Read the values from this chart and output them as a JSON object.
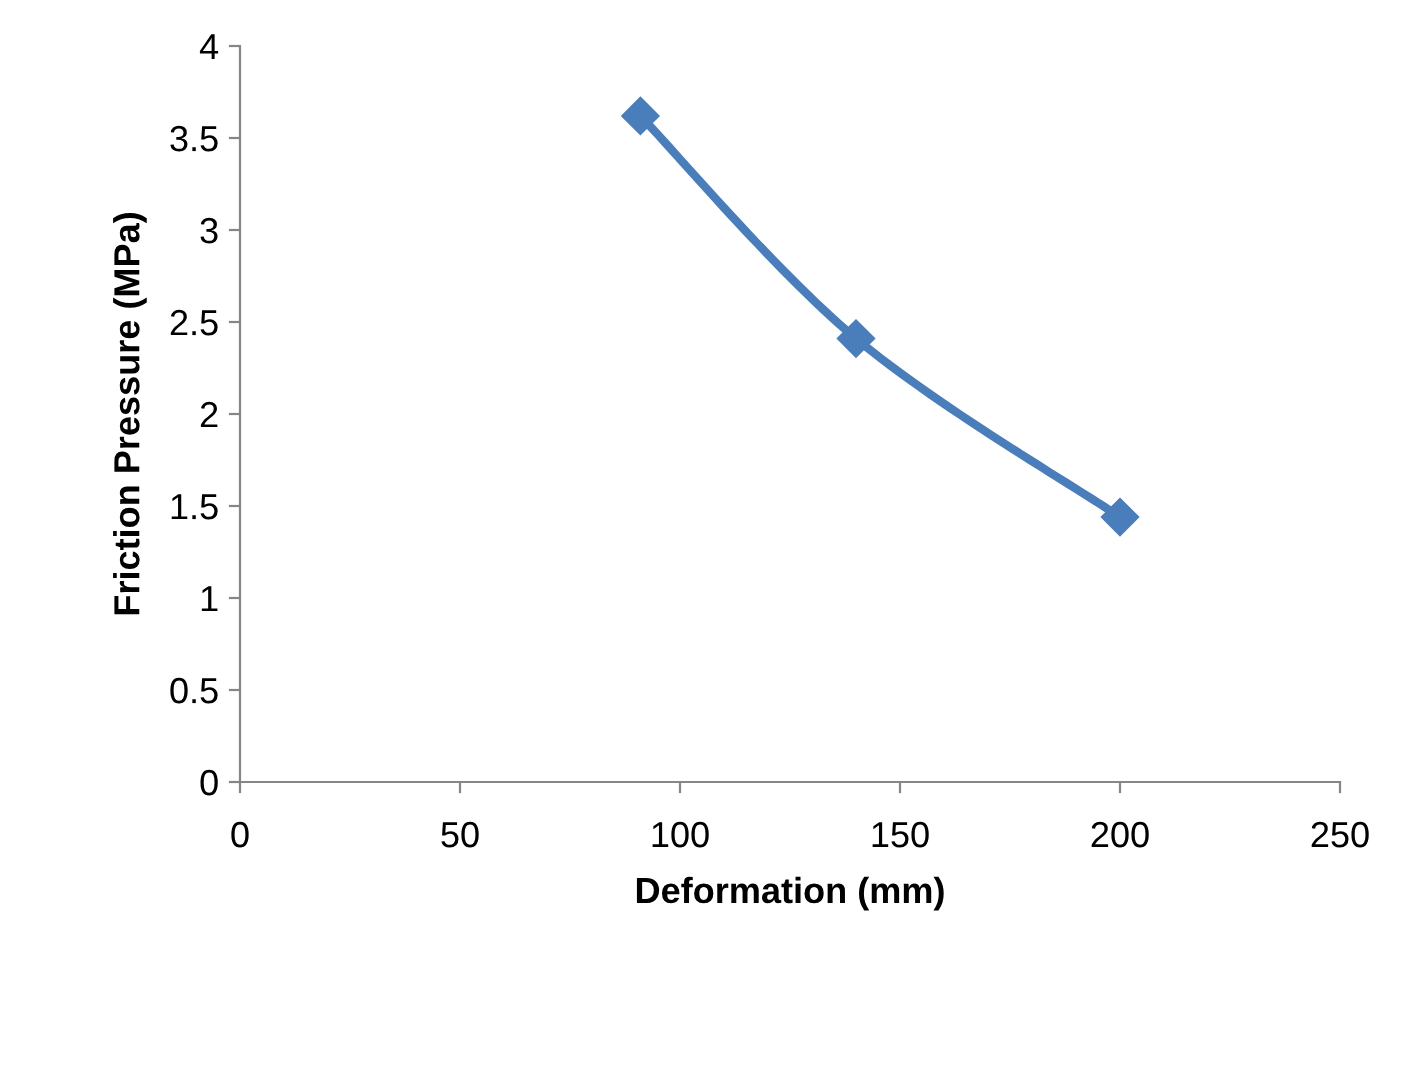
{
  "chart_data": {
    "type": "line",
    "xlabel": "Deformation (mm)",
    "ylabel": "Friction Pressure (MPa)",
    "x": [
      91,
      140,
      200
    ],
    "series": [
      {
        "color": "#4a7ebb",
        "values": [
          3.62,
          2.41,
          1.44
        ]
      }
    ],
    "xlim": [
      0,
      250
    ],
    "xticks": [
      0,
      50,
      100,
      150,
      200,
      250
    ],
    "ylim": [
      0,
      4
    ],
    "yticks": [
      0,
      0.5,
      1,
      1.5,
      2,
      2.5,
      3,
      3.5,
      4
    ],
    "marker": "diamond",
    "line_style": "solid",
    "grid": false,
    "legend": false
  }
}
